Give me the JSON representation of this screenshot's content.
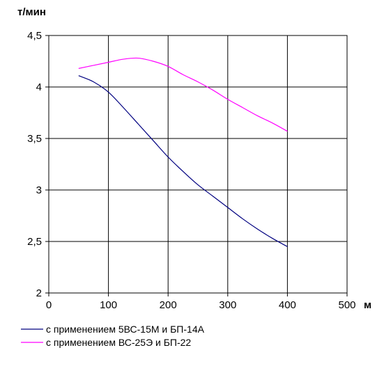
{
  "chart_data": {
    "type": "line",
    "title": "",
    "ylabel": "т/мин",
    "xlabel": "м",
    "xlim": [
      0,
      500
    ],
    "ylim": [
      2,
      4.5
    ],
    "x_ticks": [
      0,
      100,
      200,
      300,
      400,
      500
    ],
    "y_ticks": [
      2,
      2.5,
      3,
      3.5,
      4,
      4.5
    ],
    "x_tick_labels": [
      "0",
      "100",
      "200",
      "300",
      "400",
      "500"
    ],
    "y_tick_labels": [
      "2",
      "2,5",
      "3",
      "3,5",
      "4",
      "4,5"
    ],
    "grid": true,
    "legend_position": "bottom-left",
    "series": [
      {
        "name": "с применением 5ВС-15М и БП-14А",
        "color": "#000080",
        "x": [
          50,
          75,
          100,
          125,
          150,
          175,
          200,
          225,
          250,
          275,
          300,
          325,
          350,
          375,
          400
        ],
        "y": [
          4.11,
          4.05,
          3.95,
          3.8,
          3.64,
          3.48,
          3.32,
          3.18,
          3.05,
          2.94,
          2.83,
          2.72,
          2.62,
          2.53,
          2.45
        ]
      },
      {
        "name": "с применением ВС-25Э и БП-22",
        "color": "#ff00ff",
        "x": [
          50,
          75,
          100,
          125,
          150,
          175,
          200,
          225,
          250,
          275,
          300,
          325,
          350,
          375,
          400
        ],
        "y": [
          4.18,
          4.21,
          4.24,
          4.27,
          4.28,
          4.25,
          4.2,
          4.12,
          4.05,
          3.97,
          3.88,
          3.8,
          3.72,
          3.65,
          3.57
        ]
      }
    ]
  }
}
